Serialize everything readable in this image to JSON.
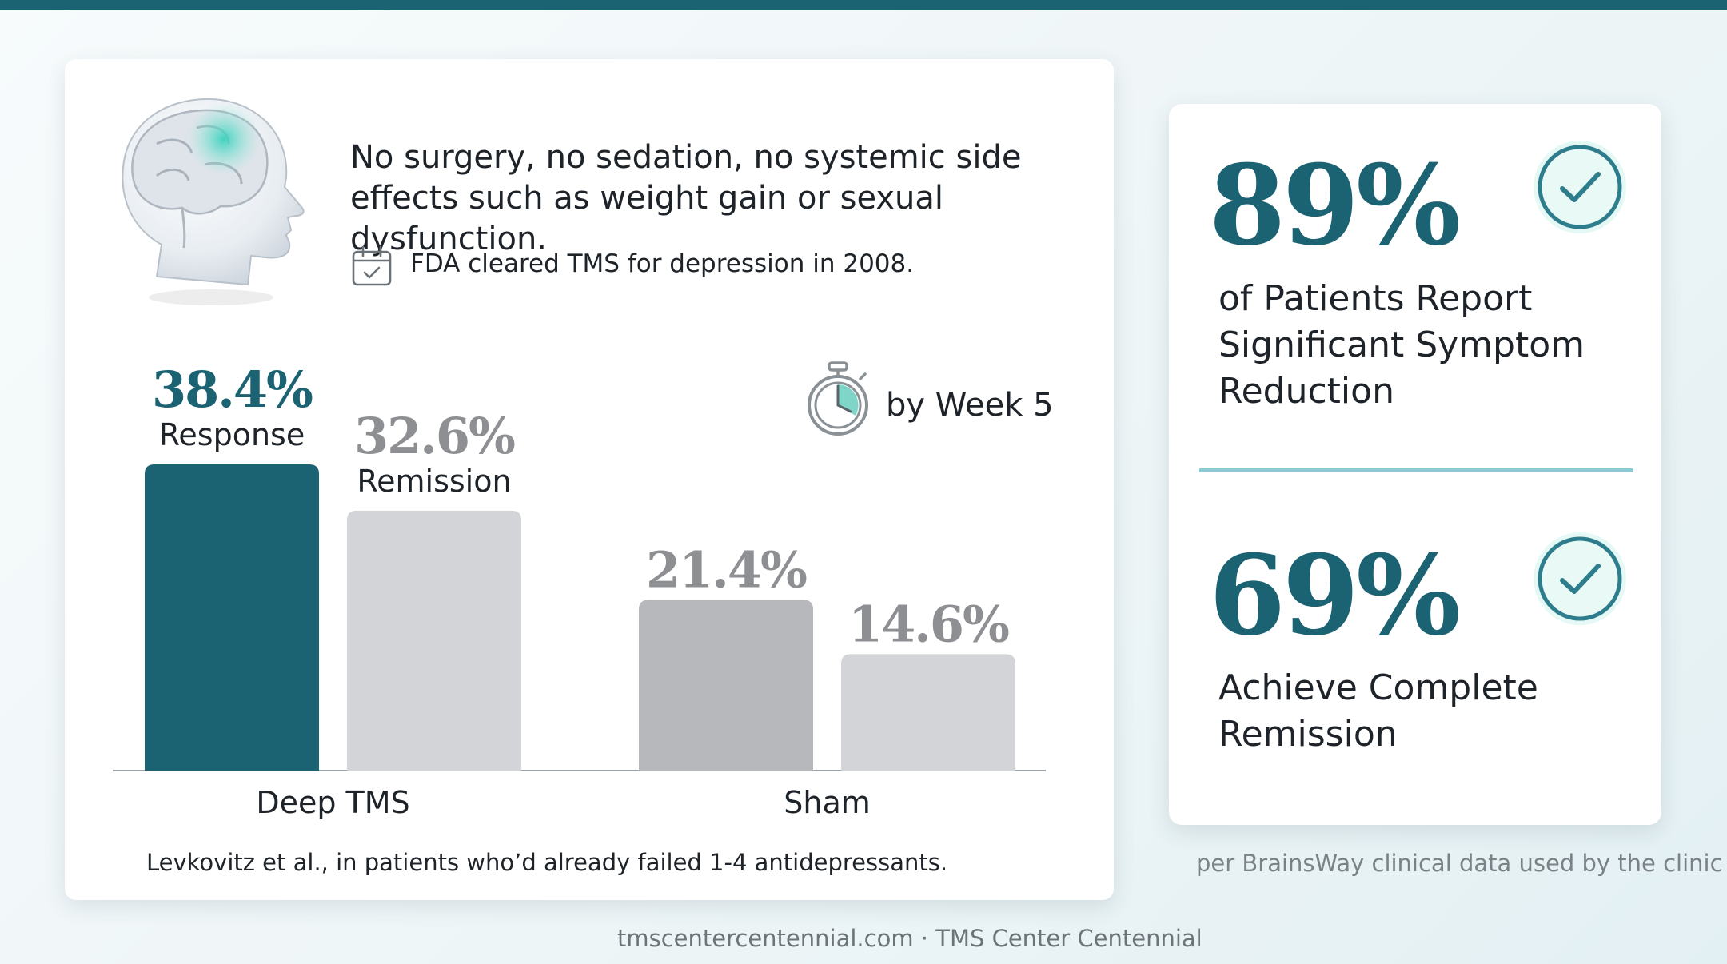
{
  "intro": {
    "text": "No surgery, no sedation, no systemic side effects such as weight gain or sexual dysfunction.",
    "fda_note": "FDA cleared TMS for depression in 2008.",
    "week_label": "by Week 5",
    "icons": [
      "head-illustration",
      "calendar-check-icon",
      "stopwatch-icon",
      "check-circle-icon"
    ]
  },
  "chart_data": {
    "type": "bar",
    "categories": [
      "Deep TMS",
      "Sham"
    ],
    "series": [
      {
        "name": "Response",
        "values": [
          38.4,
          21.4
        ],
        "value_labels": [
          "38.4%",
          "21.4%"
        ]
      },
      {
        "name": "Remission",
        "values": [
          32.6,
          14.6
        ],
        "value_labels": [
          "32.6%",
          "14.6%"
        ]
      }
    ],
    "ylim": [
      0,
      38.4
    ],
    "grid": false,
    "colors": {
      "highlight": "#1b6272",
      "muted_dark": "#b7b8bc",
      "muted_light": "#d3d4d7",
      "value_muted": "#8e8f93"
    }
  },
  "citation": "Levkovitz et al., in patients who’d already failed 1-4 antidepressants.",
  "stats": [
    {
      "value": "89%",
      "label": "of Patients Report Significant Symptom Reduction"
    },
    {
      "value": "69%",
      "label": "Achieve Complete Remission"
    }
  ],
  "source_note": "per BrainsWay clinical data used by the clinic",
  "footer": "tmscentercentennial.com · TMS Center Centennial",
  "colors": {
    "accent": "#1b6272",
    "divider": "#8ccbd3",
    "check": "#2e7d8c"
  }
}
